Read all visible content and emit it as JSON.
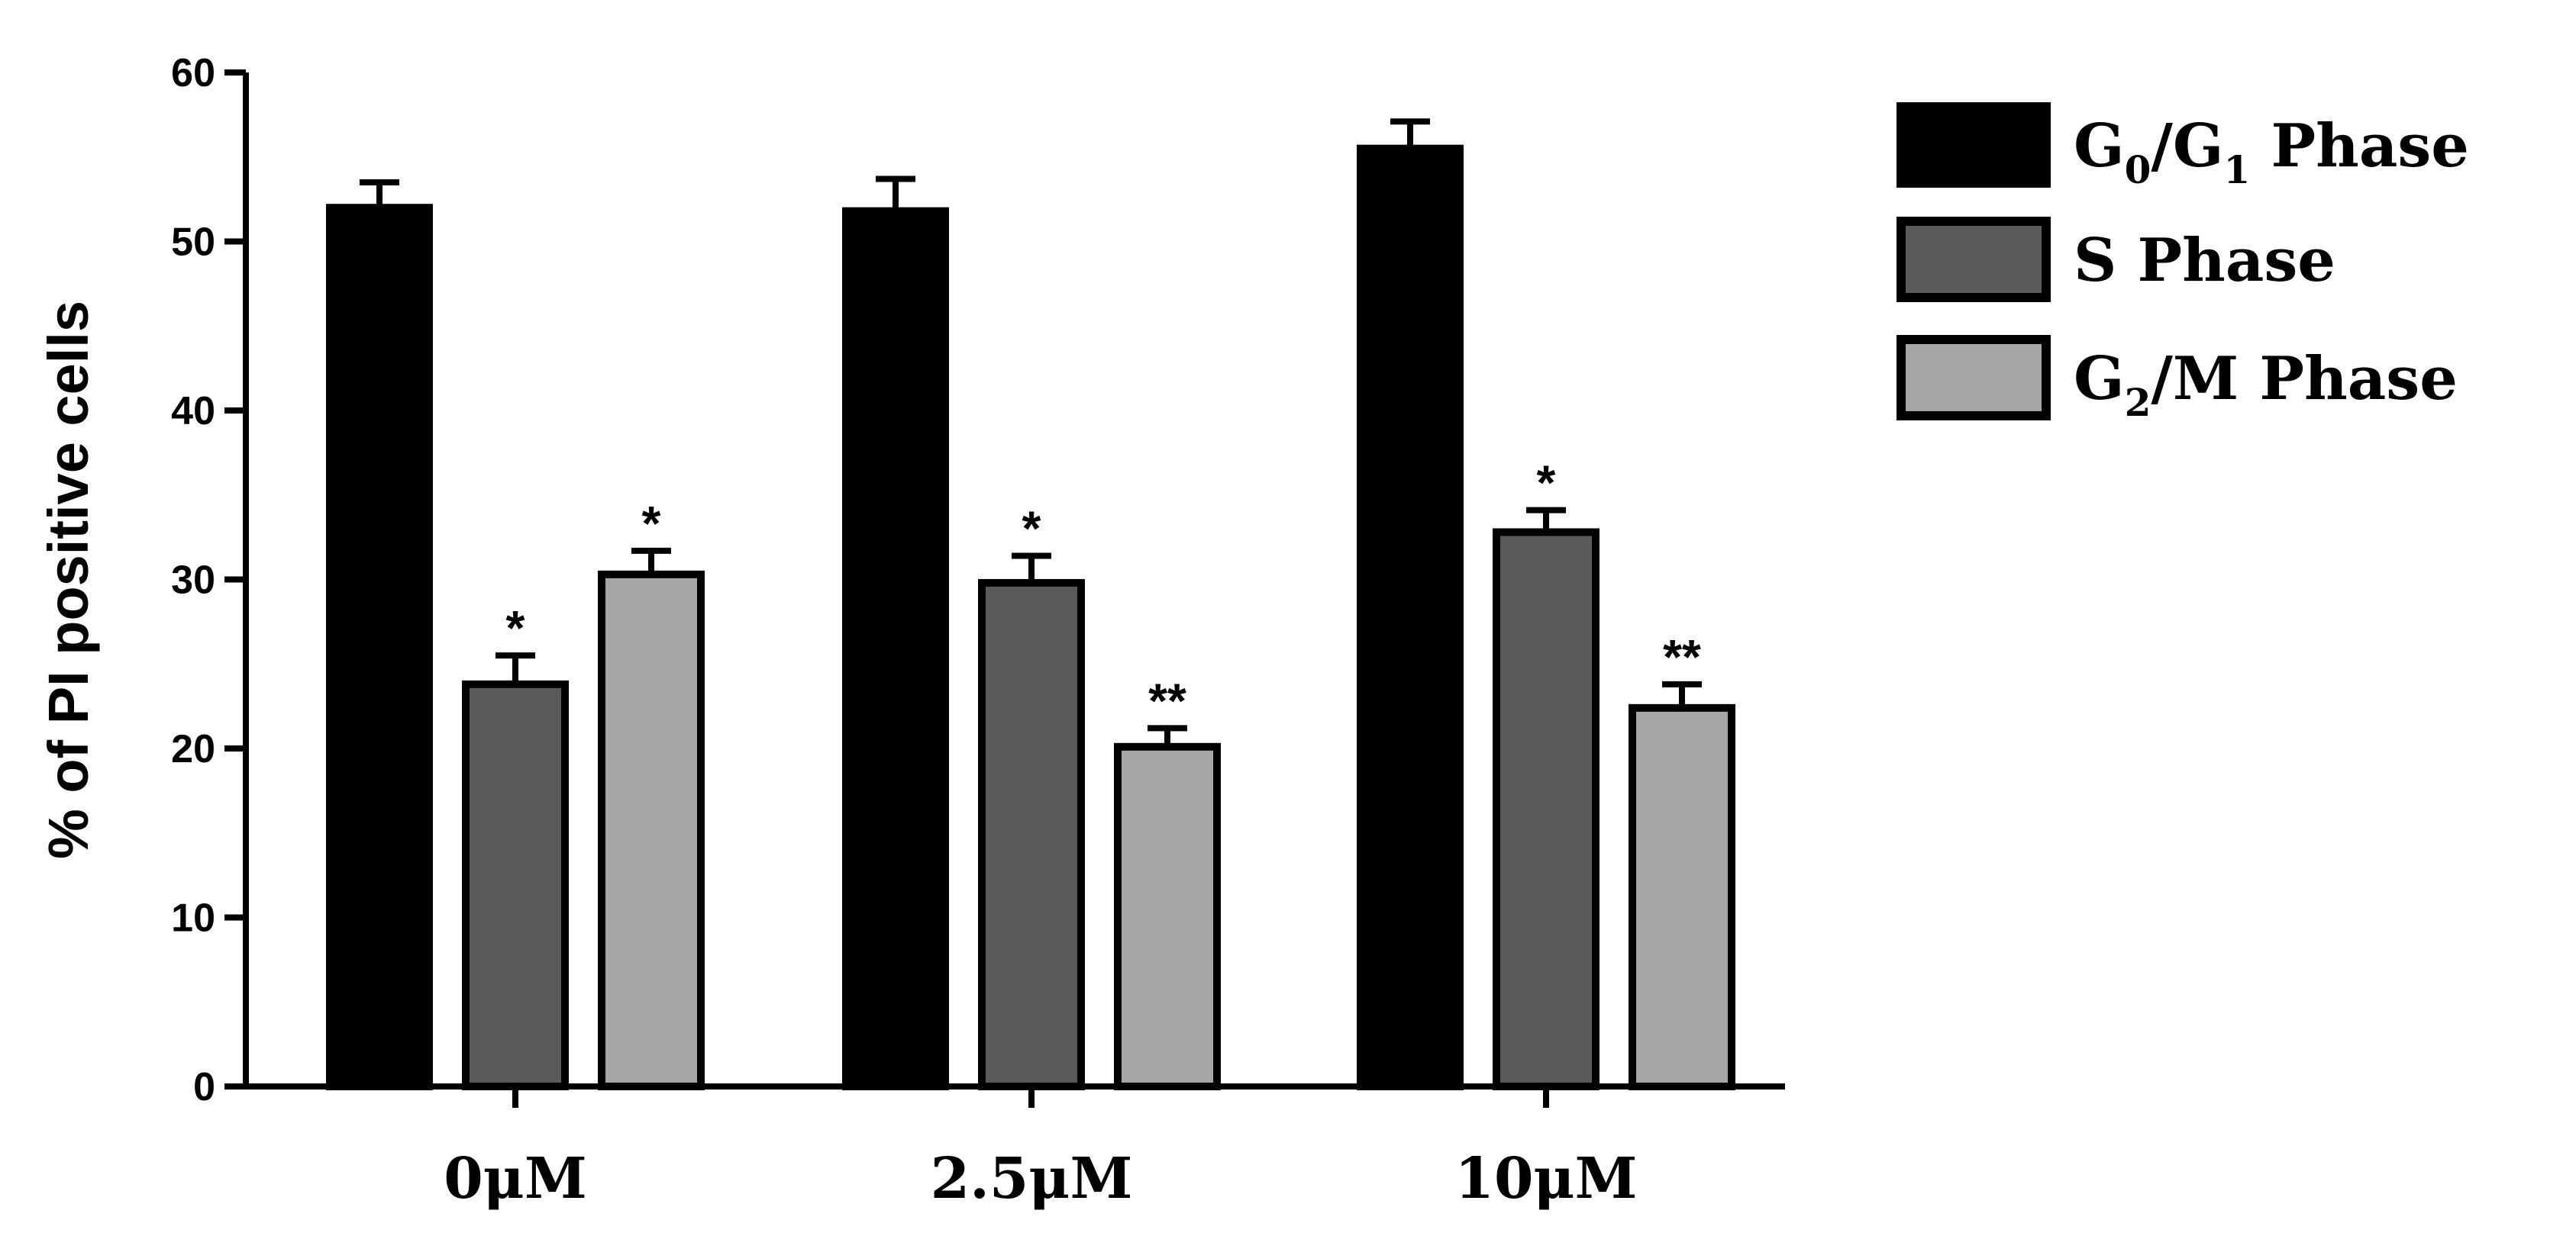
{
  "chart_data": {
    "type": "bar",
    "ylabel": "% of PI positive cells",
    "ylim": [
      0,
      60
    ],
    "yticks": [
      "0",
      "10",
      "20",
      "30",
      "40",
      "50",
      "60"
    ],
    "categories": [
      "0μM",
      "2.5μM",
      "10μM"
    ],
    "series": [
      {
        "name": "G0/G1 Phase",
        "legend_main": "G",
        "legend_sub1": "0",
        "legend_mid": "/G",
        "legend_sub2": "1",
        "legend_tail": " Phase",
        "color": "#000000",
        "values": [
          52.0,
          51.8,
          55.5
        ],
        "errors": [
          1.5,
          1.9,
          1.6
        ],
        "sig": [
          "",
          "",
          ""
        ]
      },
      {
        "name": "S Phase",
        "legend_main": "S Phase",
        "color": "#5a5a5a",
        "values": [
          23.8,
          29.8,
          32.8
        ],
        "errors": [
          1.7,
          1.6,
          1.3
        ],
        "sig": [
          "*",
          "*",
          "*"
        ]
      },
      {
        "name": "G2/M Phase",
        "legend_main": "G",
        "legend_sub1": "2",
        "legend_mid": "/M Phase",
        "color": "#a6a6a6",
        "values": [
          30.3,
          20.1,
          22.4
        ],
        "errors": [
          1.4,
          1.1,
          1.4
        ],
        "sig": [
          "*",
          "**",
          "**"
        ]
      }
    ],
    "legend": "right",
    "grid": false
  }
}
